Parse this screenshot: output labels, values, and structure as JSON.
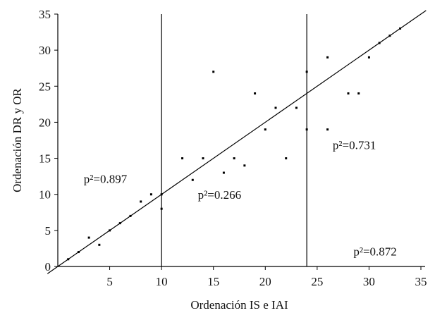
{
  "chart_data": {
    "type": "scatter",
    "xlabel": "Ordenación IS e IAI",
    "ylabel": "Ordenación DR y OR",
    "xlim": [
      0,
      35
    ],
    "ylim": [
      0,
      35
    ],
    "xticks": [
      "0",
      "5",
      "10",
      "15",
      "20",
      "25",
      "30",
      "35"
    ],
    "yticks": [
      "0",
      "5",
      "10",
      "15",
      "20",
      "25",
      "30",
      "35"
    ],
    "grid": false,
    "series": [
      {
        "points": [
          {
            "x": 1,
            "y": 1
          },
          {
            "x": 2,
            "y": 2
          },
          {
            "x": 3,
            "y": 4
          },
          {
            "x": 4,
            "y": 3
          },
          {
            "x": 5,
            "y": 5
          },
          {
            "x": 6,
            "y": 6
          },
          {
            "x": 7,
            "y": 7
          },
          {
            "x": 8,
            "y": 9
          },
          {
            "x": 9,
            "y": 10
          },
          {
            "x": 10,
            "y": 8
          },
          {
            "x": 10,
            "y": 10
          },
          {
            "x": 12,
            "y": 15
          },
          {
            "x": 13,
            "y": 12
          },
          {
            "x": 14,
            "y": 15
          },
          {
            "x": 15,
            "y": 27
          },
          {
            "x": 16,
            "y": 13
          },
          {
            "x": 17,
            "y": 15
          },
          {
            "x": 18,
            "y": 14
          },
          {
            "x": 19,
            "y": 24
          },
          {
            "x": 20,
            "y": 19
          },
          {
            "x": 21,
            "y": 22
          },
          {
            "x": 22,
            "y": 15
          },
          {
            "x": 23,
            "y": 22
          },
          {
            "x": 24,
            "y": 19
          },
          {
            "x": 24,
            "y": 27
          },
          {
            "x": 26,
            "y": 19
          },
          {
            "x": 26,
            "y": 29
          },
          {
            "x": 28,
            "y": 24
          },
          {
            "x": 29,
            "y": 24
          },
          {
            "x": 30,
            "y": 29
          },
          {
            "x": 31,
            "y": 31
          },
          {
            "x": 32,
            "y": 32
          },
          {
            "x": 33,
            "y": 33
          }
        ]
      }
    ],
    "reference_line": {
      "from": [
        -1,
        -1
      ],
      "to": [
        35.5,
        35.5
      ]
    },
    "vertical_lines": [
      10,
      24
    ],
    "annotations": [
      {
        "text": "p²=0.897",
        "x": 2.5,
        "y": 11.6
      },
      {
        "text": "p²=0.266",
        "x": 13.5,
        "y": 9.4
      },
      {
        "text": "p²=0.731",
        "x": 26.5,
        "y": 16.3
      },
      {
        "text": "p²=0.872",
        "x": 28.5,
        "y": 1.5
      }
    ]
  }
}
